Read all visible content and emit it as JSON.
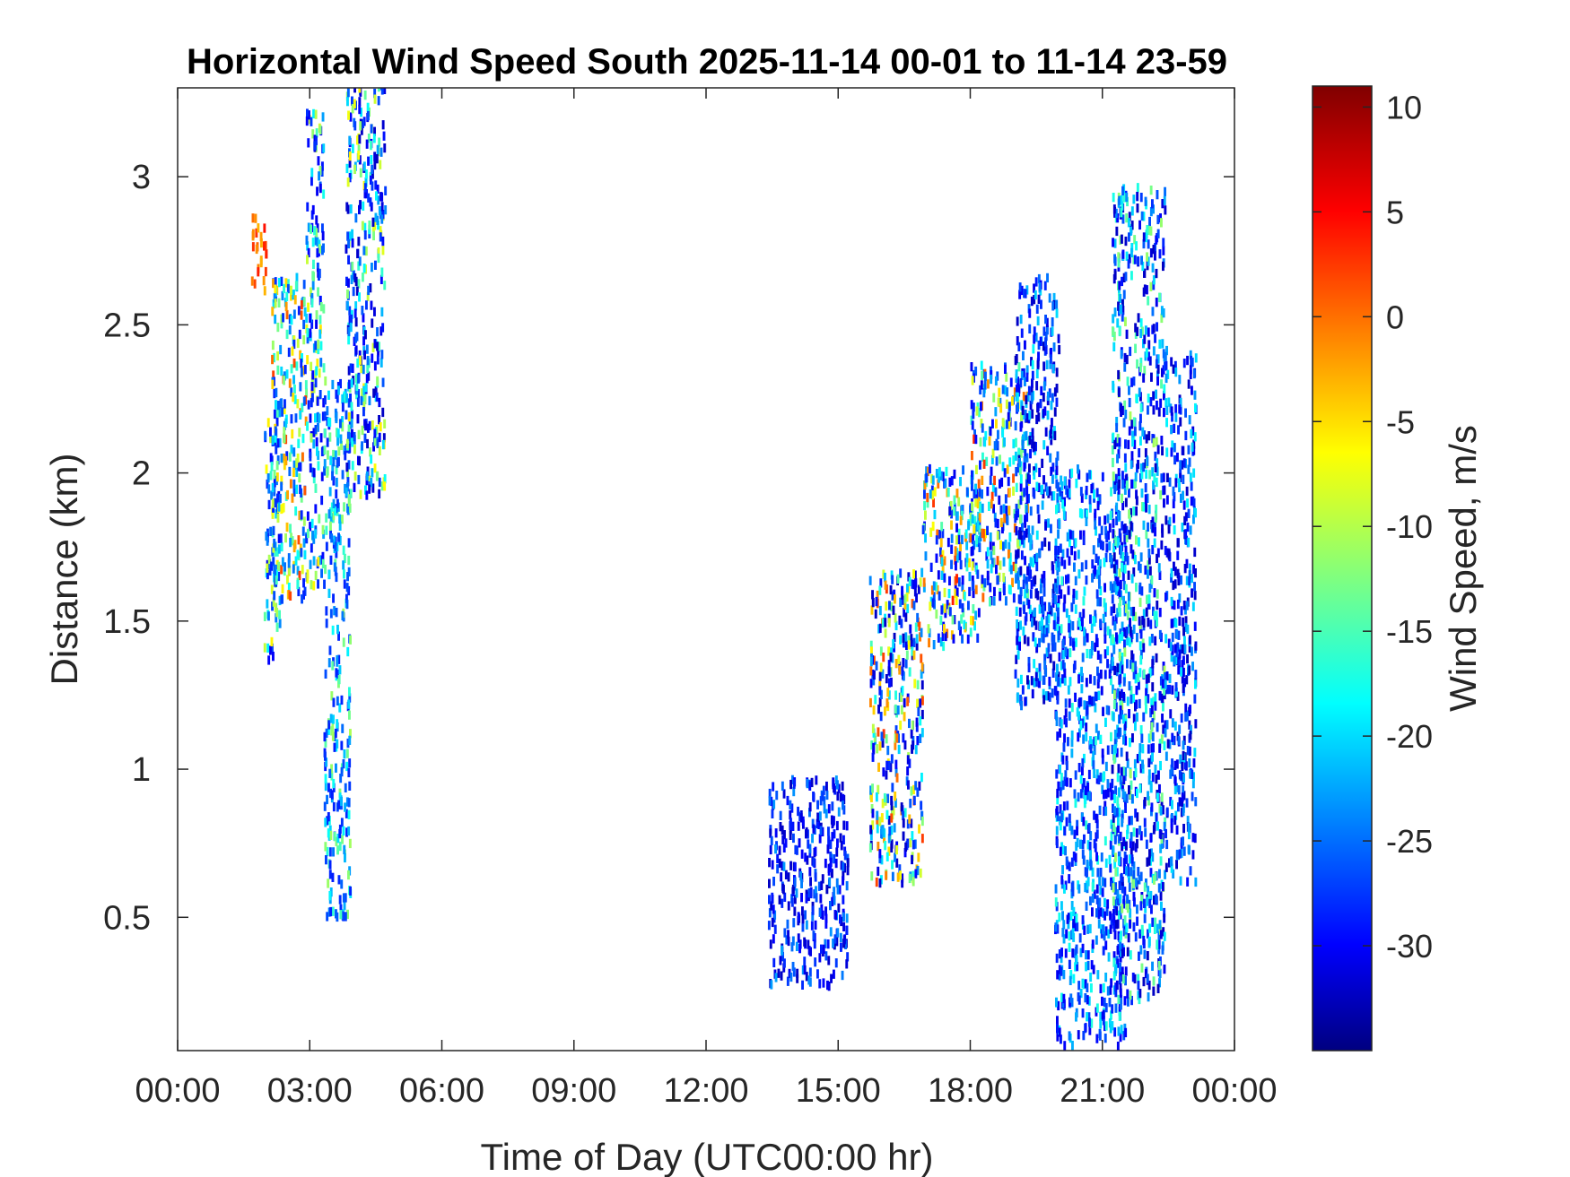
{
  "chart_data": {
    "type": "heatmap",
    "title": "Horizontal Wind Speed South 2025-11-14 00-01 to 11-14 23-59",
    "xlabel": "Time of Day (UTC00:00 hr)",
    "ylabel": "Distance (km)",
    "xlim": [
      0,
      24
    ],
    "ylim": [
      0.05,
      3.3
    ],
    "x_ticks": [
      0,
      3,
      6,
      9,
      12,
      15,
      18,
      21,
      24
    ],
    "x_tick_labels": [
      "00:00",
      "03:00",
      "06:00",
      "09:00",
      "12:00",
      "15:00",
      "18:00",
      "21:00",
      "00:00"
    ],
    "y_ticks": [
      0.5,
      1,
      1.5,
      2,
      2.5,
      3
    ],
    "y_tick_labels": [
      "0.5",
      "1",
      "1.5",
      "2",
      "2.5",
      "3"
    ],
    "colorbar": {
      "label": "Wind Speed, m/s",
      "clim": [
        -35,
        11
      ],
      "ticks": [
        10,
        5,
        0,
        -5,
        -10,
        -15,
        -20,
        -25,
        -30
      ],
      "tick_labels": [
        "10",
        "5",
        "0",
        "-5",
        "-10",
        "-15",
        "-20",
        "-25",
        "-30"
      ],
      "colormap": "jet"
    },
    "clusters": [
      {
        "t": [
          1.65,
          2.0
        ],
        "z": [
          2.6,
          2.85
        ],
        "v": [
          -3,
          5
        ]
      },
      {
        "t": [
          1.95,
          2.3
        ],
        "z": [
          1.35,
          2.2
        ],
        "v": [
          -30,
          -5
        ]
      },
      {
        "t": [
          2.1,
          2.9
        ],
        "z": [
          1.55,
          2.65
        ],
        "v": [
          -28,
          3
        ]
      },
      {
        "t": [
          2.9,
          3.3
        ],
        "z": [
          1.6,
          3.2
        ],
        "v": [
          -30,
          -5
        ]
      },
      {
        "t": [
          3.3,
          3.9
        ],
        "z": [
          0.48,
          2.3
        ],
        "v": [
          -28,
          -10
        ]
      },
      {
        "t": [
          3.8,
          4.7
        ],
        "z": [
          1.9,
          3.3
        ],
        "v": [
          -32,
          -5
        ]
      },
      {
        "t": [
          13.4,
          15.2
        ],
        "z": [
          0.25,
          0.95
        ],
        "v": [
          -32,
          -22
        ]
      },
      {
        "t": [
          15.7,
          16.9
        ],
        "z": [
          0.6,
          1.65
        ],
        "v": [
          -32,
          3
        ]
      },
      {
        "t": [
          16.9,
          18.2
        ],
        "z": [
          1.4,
          2.0
        ],
        "v": [
          -30,
          4
        ]
      },
      {
        "t": [
          18.0,
          19.3
        ],
        "z": [
          1.55,
          2.35
        ],
        "v": [
          -30,
          4
        ]
      },
      {
        "t": [
          19.0,
          20.0
        ],
        "z": [
          1.2,
          2.65
        ],
        "v": [
          -32,
          -18
        ]
      },
      {
        "t": [
          19.9,
          21.5
        ],
        "z": [
          0.05,
          2.0
        ],
        "v": [
          -30,
          -16
        ]
      },
      {
        "t": [
          21.2,
          22.4
        ],
        "z": [
          0.2,
          2.95
        ],
        "v": [
          -32,
          -10
        ]
      },
      {
        "t": [
          22.4,
          23.1
        ],
        "z": [
          0.6,
          2.4
        ],
        "v": [
          -32,
          -18
        ]
      }
    ]
  }
}
